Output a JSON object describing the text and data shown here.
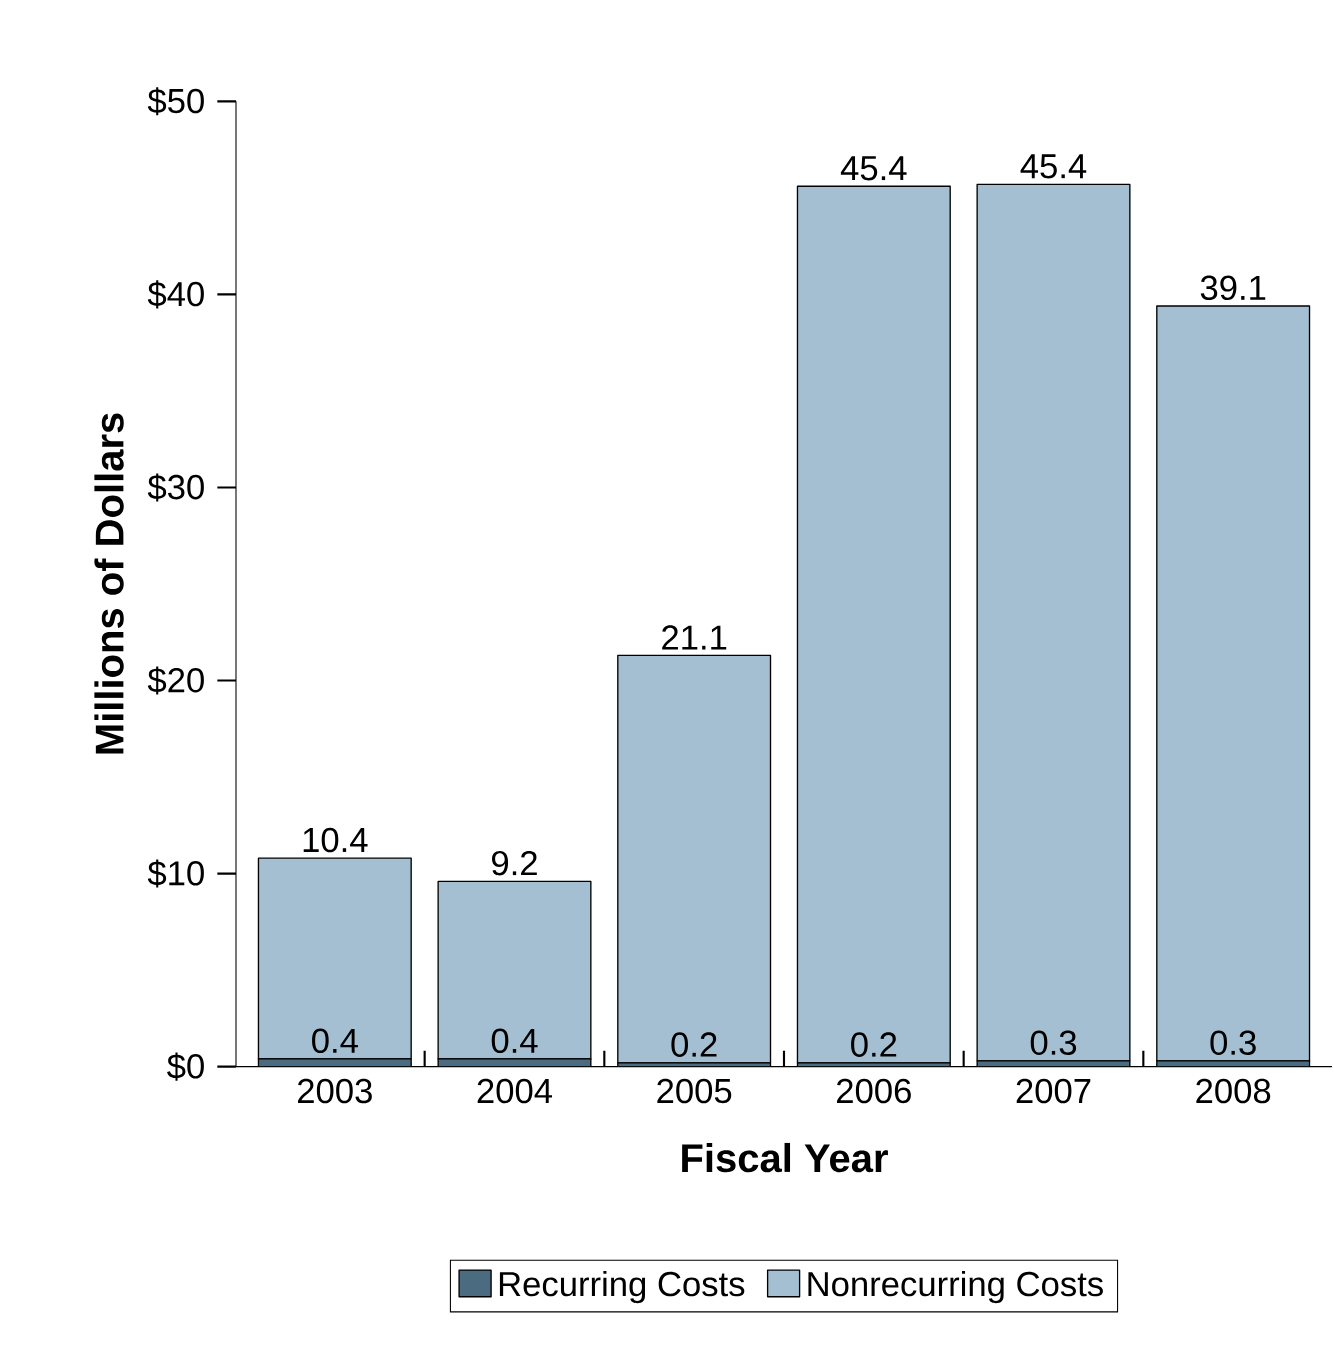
{
  "chart_data": {
    "type": "bar",
    "stacked": true,
    "xlabel": "Fiscal Year",
    "ylabel": "Millions of Dollars",
    "categories": [
      "2003",
      "2004",
      "2005",
      "2006",
      "2007",
      "2008"
    ],
    "series": [
      {
        "name": "Recurring Costs",
        "color": "#4b6b80",
        "values": [
          0.4,
          0.4,
          0.2,
          0.2,
          0.3,
          0.3
        ]
      },
      {
        "name": "Nonrecurring Costs",
        "color": "#a3bfd1",
        "values": [
          10.4,
          9.2,
          21.1,
          45.4,
          45.4,
          39.1
        ]
      }
    ],
    "ylim": [
      0,
      50
    ],
    "yticks": [
      {
        "value": 0,
        "label": "$0"
      },
      {
        "value": 10,
        "label": "$10"
      },
      {
        "value": 20,
        "label": "$20"
      },
      {
        "value": 30,
        "label": "$30"
      },
      {
        "value": 40,
        "label": "$40"
      },
      {
        "value": 50,
        "label": "$50"
      }
    ],
    "data_labels": true,
    "legend": "bottom",
    "grid": false
  }
}
